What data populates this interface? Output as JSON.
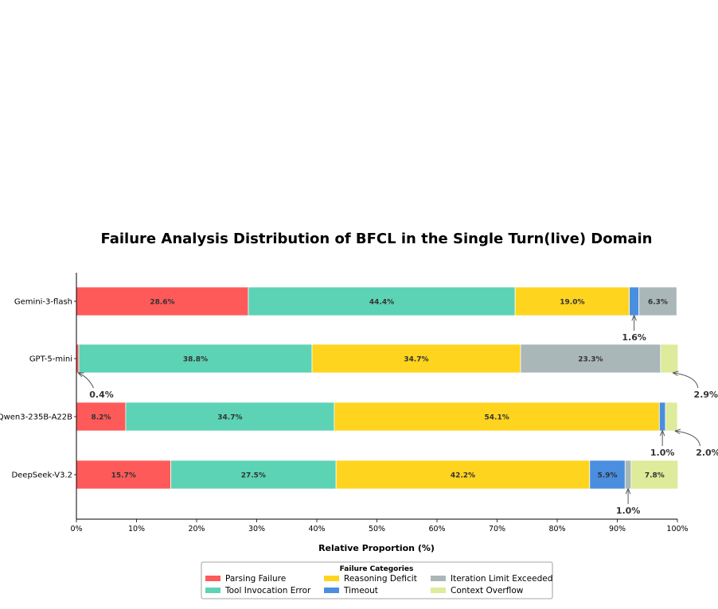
{
  "chart_data": {
    "type": "bar",
    "orientation": "horizontal",
    "stacked": true,
    "title": "Failure Analysis Distribution of BFCL in the Single Turn(live) Domain",
    "xlabel": "Relative Proportion (%)",
    "ylabel": "",
    "xlim": [
      0,
      100
    ],
    "x_ticks": [
      "0%",
      "10%",
      "20%",
      "30%",
      "40%",
      "50%",
      "60%",
      "70%",
      "80%",
      "90%",
      "100%"
    ],
    "categories": [
      "Gemini-3-flash",
      "GPT-5-mini",
      "Qwen3-235B-A22B",
      "DeepSeek-V3.2"
    ],
    "series": [
      {
        "name": "Parsing Failure",
        "color": "#FF5A5A",
        "values": [
          28.6,
          0.4,
          8.2,
          15.7
        ],
        "labels": [
          "28.6%",
          "0.4%",
          "8.2%",
          "15.7%"
        ]
      },
      {
        "name": "Tool Invocation Error",
        "color": "#5CD3B4",
        "values": [
          44.4,
          38.8,
          34.7,
          27.5
        ],
        "labels": [
          "44.4%",
          "38.8%",
          "34.7%",
          "27.5%"
        ]
      },
      {
        "name": "Reasoning Deficit",
        "color": "#FFD41F",
        "values": [
          19.0,
          34.7,
          54.1,
          42.2
        ],
        "labels": [
          "19.0%",
          "34.7%",
          "54.1%",
          "42.2%"
        ]
      },
      {
        "name": "Timeout",
        "color": "#4A8EE0",
        "values": [
          1.6,
          0,
          1.0,
          5.9
        ],
        "labels": [
          "1.6%",
          "",
          "1.0%",
          "5.9%"
        ]
      },
      {
        "name": "Iteration Limit Exceeded",
        "color": "#AAB7B8",
        "values": [
          6.3,
          23.3,
          0,
          1.0
        ],
        "labels": [
          "6.3%",
          "23.3%",
          "",
          "1.0%"
        ]
      },
      {
        "name": "Context Overflow",
        "color": "#DDEB9A",
        "values": [
          0,
          2.9,
          2.0,
          7.8
        ],
        "labels": [
          "",
          "2.9%",
          "2.0%",
          "7.8%"
        ]
      }
    ],
    "legend": {
      "title": "Failure Categories",
      "placement": "bottom-center"
    },
    "grid": false
  }
}
